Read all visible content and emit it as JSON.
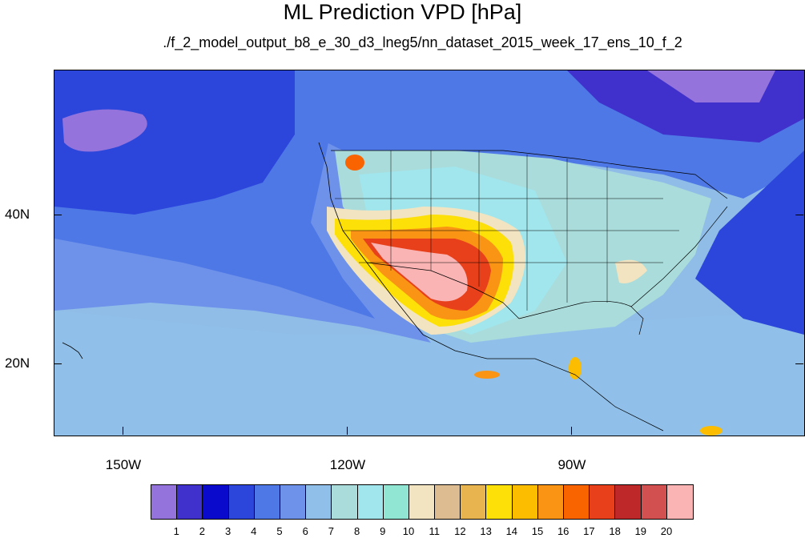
{
  "title": "ML Prediction VPD [hPa]",
  "subtitle": "./f_2_model_output_b8_e_30_d3_lneg5/nn_dataset_2015_week_17_ens_10_f_2",
  "axes": {
    "lat_labels": [
      "40N",
      "20N"
    ],
    "lon_labels": [
      "150W",
      "120W",
      "90W"
    ]
  },
  "colorbar": {
    "colors": [
      "#9474dc",
      "#4030cc",
      "#0a0acc",
      "#2c46dc",
      "#4e78e6",
      "#6e92ea",
      "#90c0ea",
      "#aadcdc",
      "#a0e6ec",
      "#90e6d2",
      "#f2e4c0",
      "#dcbc90",
      "#e8b450",
      "#fce008",
      "#fcbc00",
      "#fa9414",
      "#fa6400",
      "#e8401a",
      "#be2828",
      "#d25050",
      "#fab4b4"
    ],
    "labels": [
      "1",
      "2",
      "3",
      "4",
      "5",
      "6",
      "7",
      "8",
      "9",
      "10",
      "11",
      "12",
      "13",
      "14",
      "15",
      "16",
      "17",
      "18",
      "19",
      "20"
    ]
  }
}
